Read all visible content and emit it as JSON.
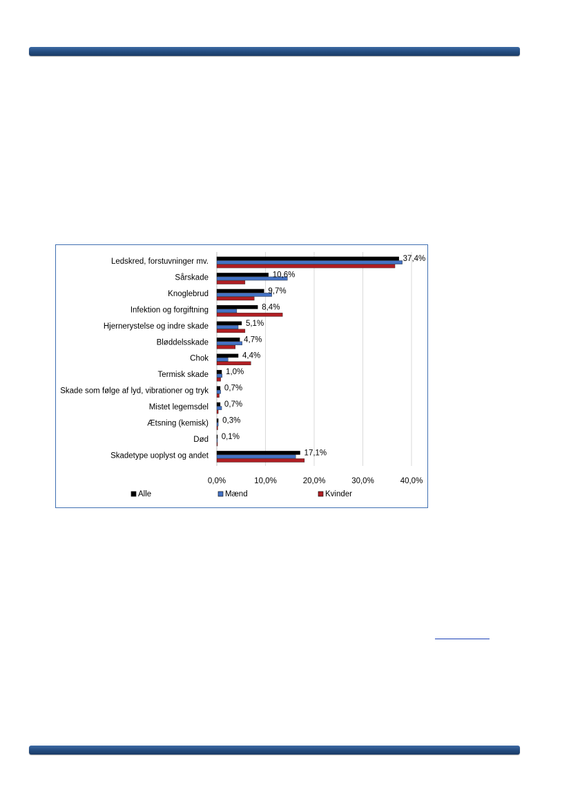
{
  "chart_data": {
    "type": "bar",
    "orientation": "horizontal",
    "categories": [
      "Ledskred, forstuvninger mv.",
      "Sårskade",
      "Knoglebrud",
      "Infektion og forgiftning",
      "Hjernerystelse og indre skade",
      "Bløddelsskade",
      "Chok",
      "Termisk skade",
      "Skade som følge af lyd, vibrationer og tryk",
      "Mistet legemsdel",
      "Ætsning (kemisk)",
      "Død",
      "Skadetype uoplyst og andet"
    ],
    "series": [
      {
        "name": "Alle",
        "color": "#000000",
        "values": [
          37.4,
          10.6,
          9.7,
          8.4,
          5.1,
          4.7,
          4.4,
          1.0,
          0.7,
          0.7,
          0.3,
          0.1,
          17.1
        ]
      },
      {
        "name": "Mænd",
        "color": "#4472c4",
        "values": [
          38.1,
          14.5,
          11.3,
          4.1,
          4.4,
          5.2,
          2.3,
          1.1,
          0.8,
          1.0,
          0.3,
          0.1,
          16.2
        ]
      },
      {
        "name": "Kvinder",
        "color": "#b01e23",
        "values": [
          36.6,
          5.8,
          7.7,
          13.5,
          5.8,
          3.8,
          7.0,
          0.8,
          0.5,
          0.3,
          0.2,
          0.1,
          18.0
        ]
      }
    ],
    "data_labels": [
      "37,4%",
      "10,6%",
      "9,7%",
      "8,4%",
      "5,1%",
      "4,7%",
      "4,4%",
      "1,0%",
      "0,7%",
      "0,7%",
      "0,3%",
      "0,1%",
      "17,1%"
    ],
    "x_ticks": [
      "0,0%",
      "10,0%",
      "20,0%",
      "30,0%",
      "40,0%"
    ],
    "xlim": [
      0,
      40
    ],
    "grid": true,
    "legend_position": "bottom",
    "legend": [
      "Alle",
      "Mænd",
      "Kvinder"
    ],
    "title": "",
    "xlabel": "",
    "ylabel": ""
  }
}
